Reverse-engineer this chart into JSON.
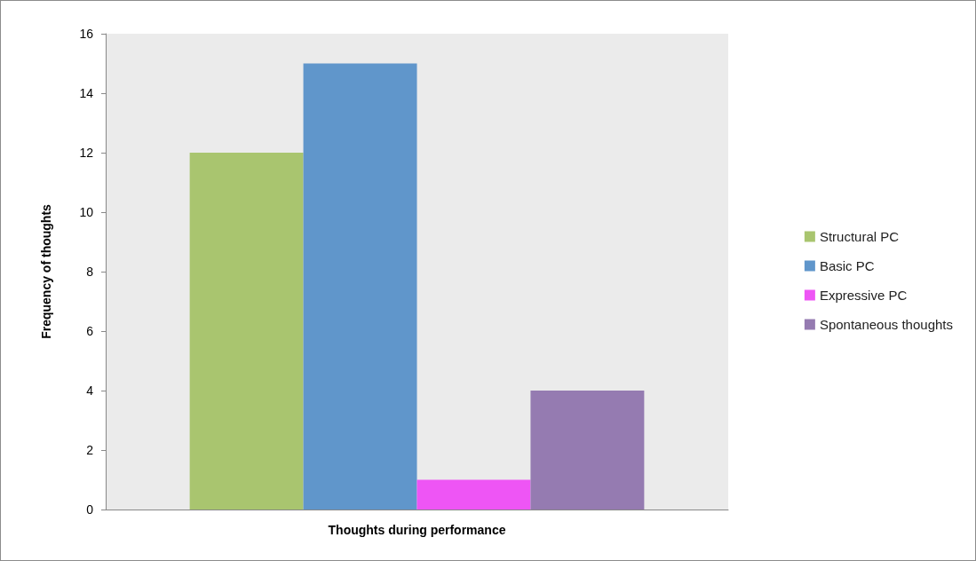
{
  "chart_data": {
    "type": "bar",
    "xlabel": "Thoughts during performance",
    "ylabel": "Frequency of thoughts",
    "categories": [
      null
    ],
    "series": [
      {
        "name": "Structural PC",
        "color": "#a9c56f",
        "values": [
          12
        ]
      },
      {
        "name": "Basic PC",
        "color": "#6096cb",
        "values": [
          15
        ]
      },
      {
        "name": "Expressive PC",
        "color": "#ee55f5",
        "values": [
          1
        ]
      },
      {
        "name": "Spontaneous thoughts",
        "color": "#957bb1",
        "values": [
          4
        ]
      }
    ],
    "ylim": [
      0,
      16
    ],
    "yticks": [
      0,
      2,
      4,
      6,
      8,
      10,
      12,
      14,
      16
    ],
    "grid": false,
    "legend": "right"
  }
}
